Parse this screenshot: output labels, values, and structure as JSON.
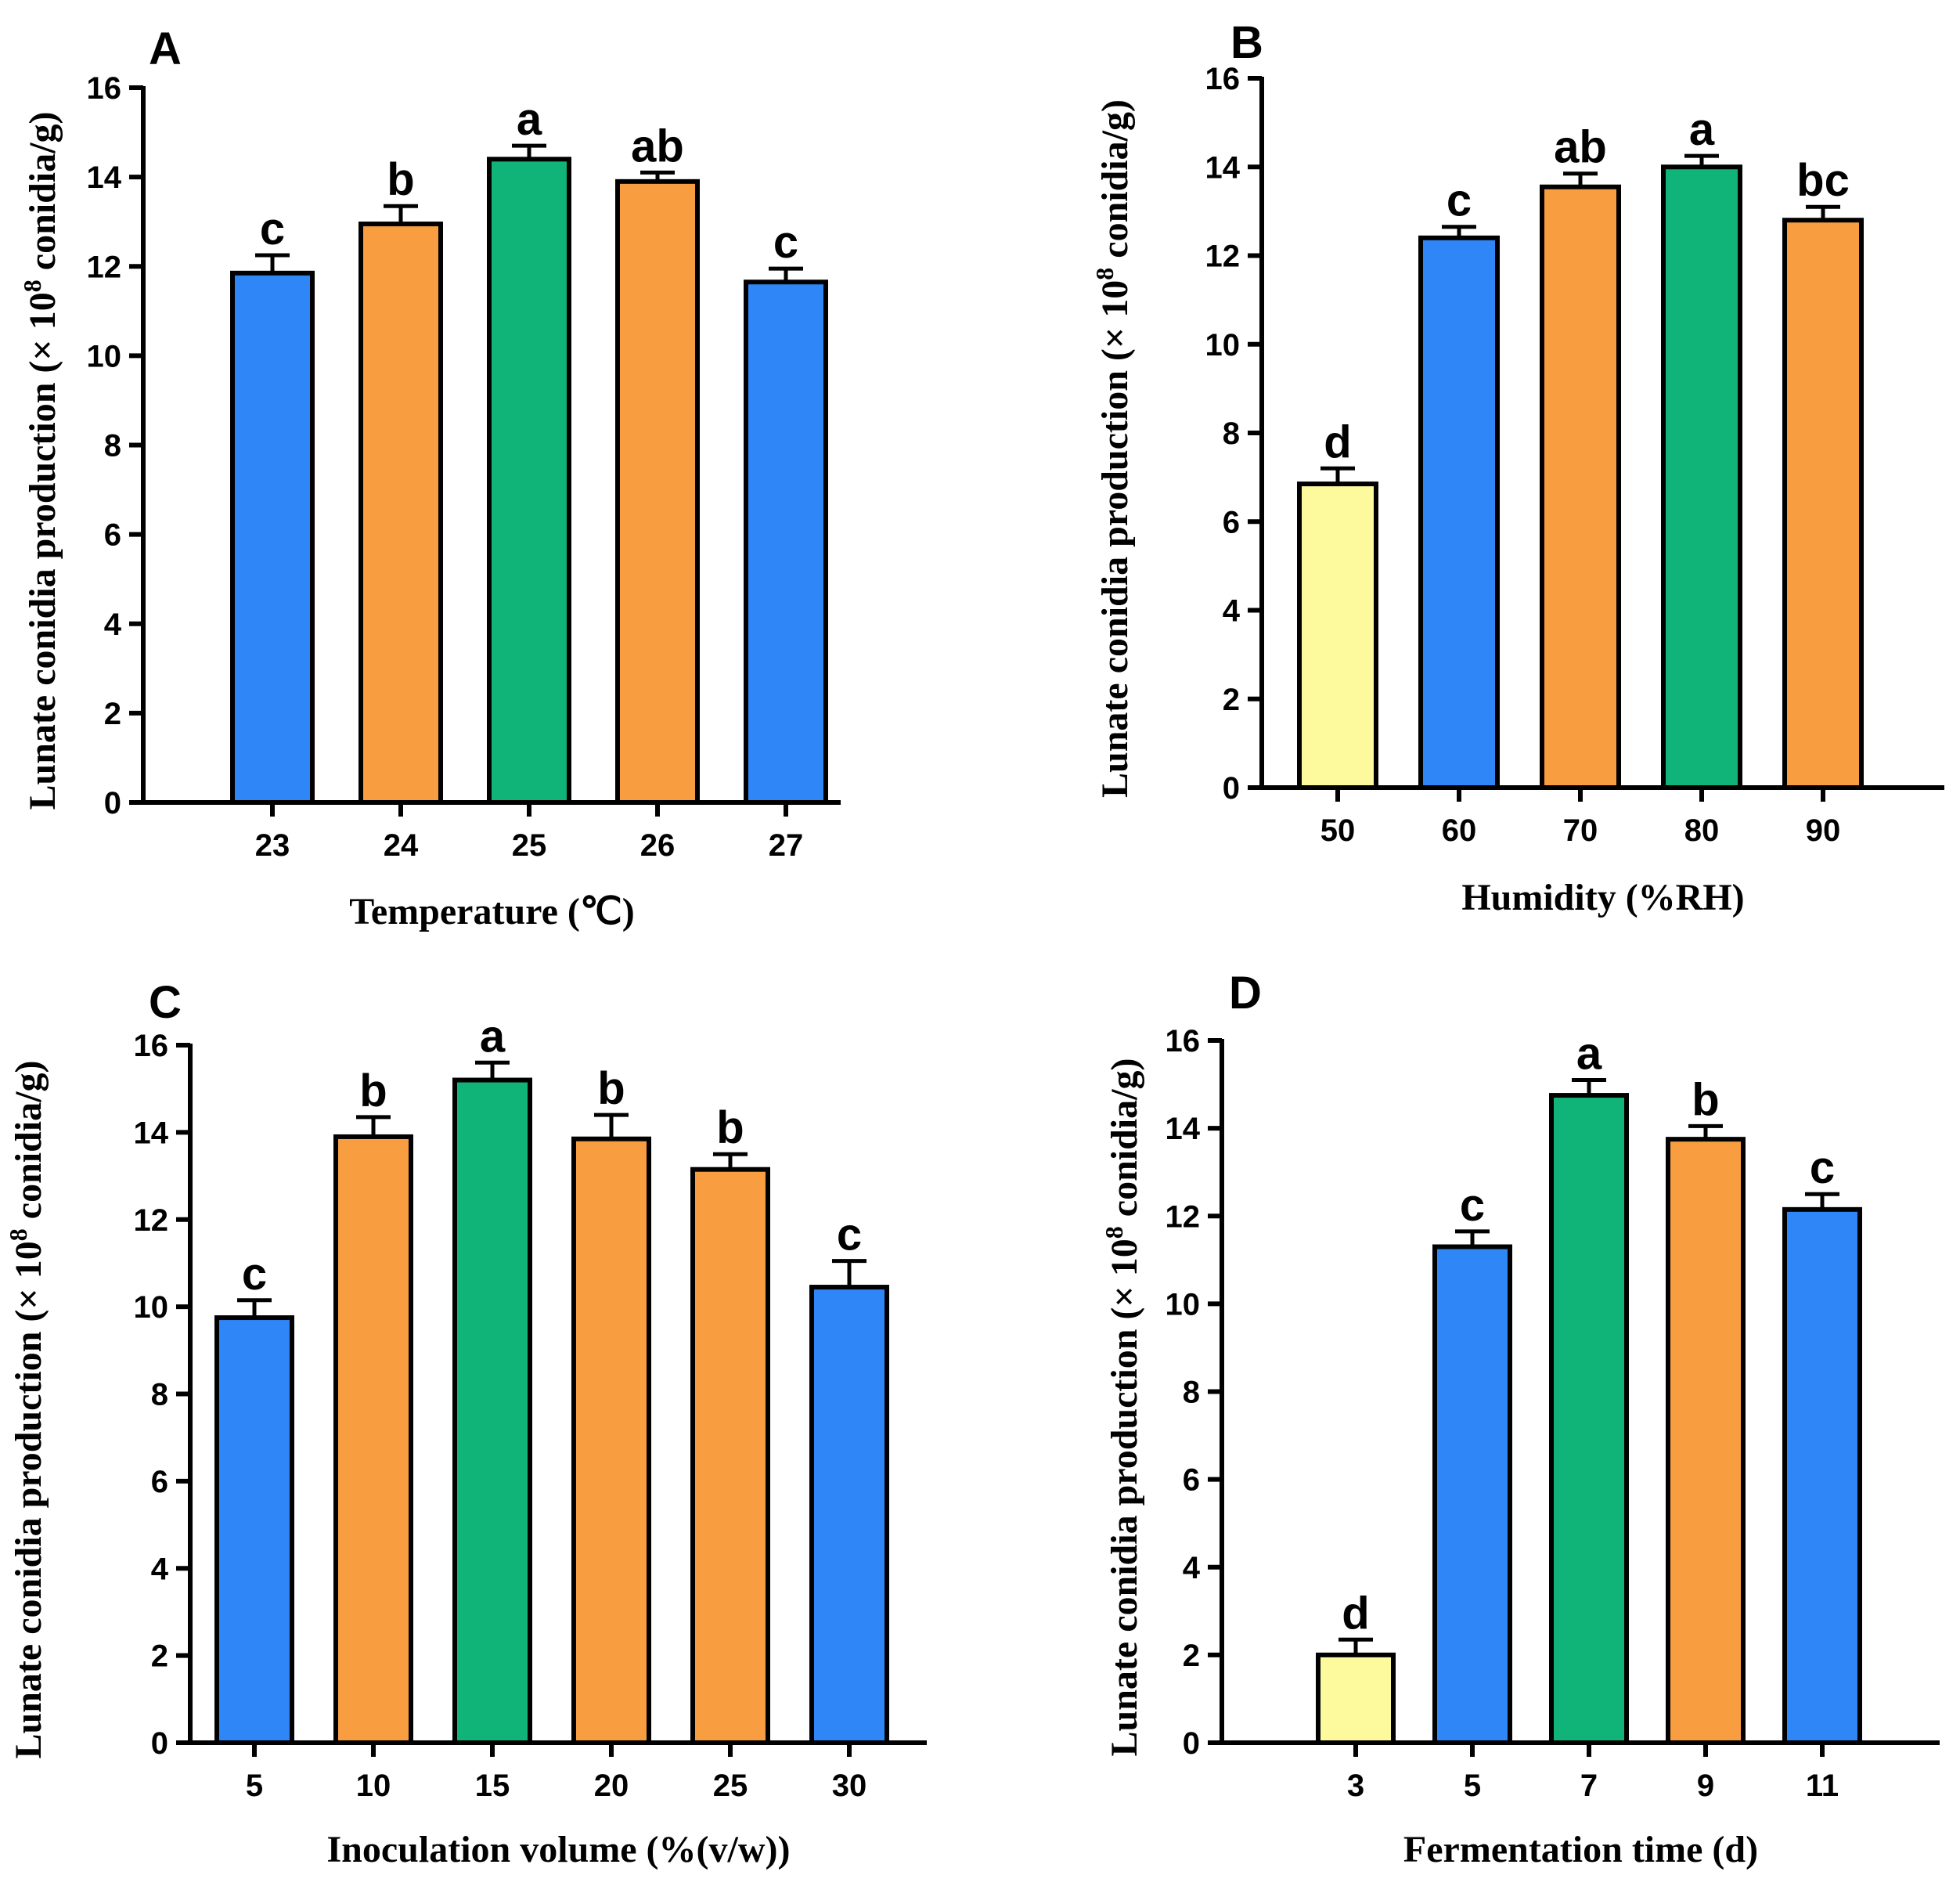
{
  "figure": {
    "unit_superscript": "8",
    "colors": {
      "blue": "#2f86f6",
      "orange": "#f89e40",
      "green": "#10b478",
      "yellow": "#fcfa9c"
    }
  },
  "chart_data": [
    {
      "panel": "A",
      "type": "bar",
      "categories": [
        "23",
        "24",
        "25",
        "26",
        "27"
      ],
      "values": [
        11.85,
        12.95,
        14.4,
        13.9,
        11.65
      ],
      "errors": [
        0.4,
        0.4,
        0.3,
        0.2,
        0.3
      ],
      "labels": [
        "c",
        "b",
        "a",
        "ab",
        "c"
      ],
      "colors": [
        "blue",
        "orange",
        "green",
        "orange",
        "blue"
      ],
      "xlabel": "Temperature (℃)",
      "ylabel_prefix": "Lunate conidia production (× 10",
      "ylabel_suffix": " conidia/g)",
      "ylim": [
        0,
        16
      ],
      "yticks": [
        "0",
        "2",
        "4",
        "6",
        "8",
        "10",
        "12",
        "14",
        "16"
      ]
    },
    {
      "panel": "B",
      "type": "bar",
      "categories": [
        "50",
        "60",
        "70",
        "80",
        "90"
      ],
      "values": [
        6.85,
        12.4,
        13.55,
        14.0,
        12.8
      ],
      "errors": [
        0.35,
        0.25,
        0.3,
        0.25,
        0.3
      ],
      "labels": [
        "d",
        "c",
        "ab",
        "a",
        "bc"
      ],
      "colors": [
        "yellow",
        "blue",
        "orange",
        "green",
        "orange"
      ],
      "xlabel": "Humidity (%RH)",
      "ylabel_prefix": "Lunate conidia production (× 10",
      "ylabel_suffix": " conidia/g)",
      "ylim": [
        0,
        16
      ],
      "yticks": [
        "0",
        "2",
        "4",
        "6",
        "8",
        "10",
        "12",
        "14",
        "16"
      ]
    },
    {
      "panel": "C",
      "type": "bar",
      "categories": [
        "5",
        "10",
        "15",
        "20",
        "25",
        "30"
      ],
      "values": [
        9.75,
        13.9,
        15.2,
        13.85,
        13.15,
        10.45
      ],
      "errors": [
        0.4,
        0.45,
        0.4,
        0.55,
        0.35,
        0.6
      ],
      "labels": [
        "c",
        "b",
        "a",
        "b",
        "b",
        "c"
      ],
      "colors": [
        "blue",
        "orange",
        "green",
        "orange",
        "orange",
        "blue"
      ],
      "xlabel": "Inoculation volume (%(v/w))",
      "ylabel_prefix": "Lunate conidia production (× 10",
      "ylabel_suffix": " conidia/g)",
      "ylim": [
        0,
        16
      ],
      "yticks": [
        "0",
        "2",
        "4",
        "6",
        "8",
        "10",
        "12",
        "14",
        "16"
      ]
    },
    {
      "panel": "D",
      "type": "bar",
      "categories": [
        "3",
        "5",
        "7",
        "9",
        "11"
      ],
      "values": [
        2.0,
        11.3,
        14.75,
        13.75,
        12.15
      ],
      "errors": [
        0.35,
        0.35,
        0.35,
        0.3,
        0.35
      ],
      "labels": [
        "d",
        "c",
        "a",
        "b",
        "c"
      ],
      "colors": [
        "yellow",
        "blue",
        "green",
        "orange",
        "blue"
      ],
      "xlabel": "Fermentation time (d)",
      "ylabel_prefix": "Lunate conidia production (× 10",
      "ylabel_suffix": " conidia/g)",
      "ylim": [
        0,
        16
      ],
      "yticks": [
        "0",
        "2",
        "4",
        "6",
        "8",
        "10",
        "12",
        "14",
        "16"
      ]
    }
  ]
}
